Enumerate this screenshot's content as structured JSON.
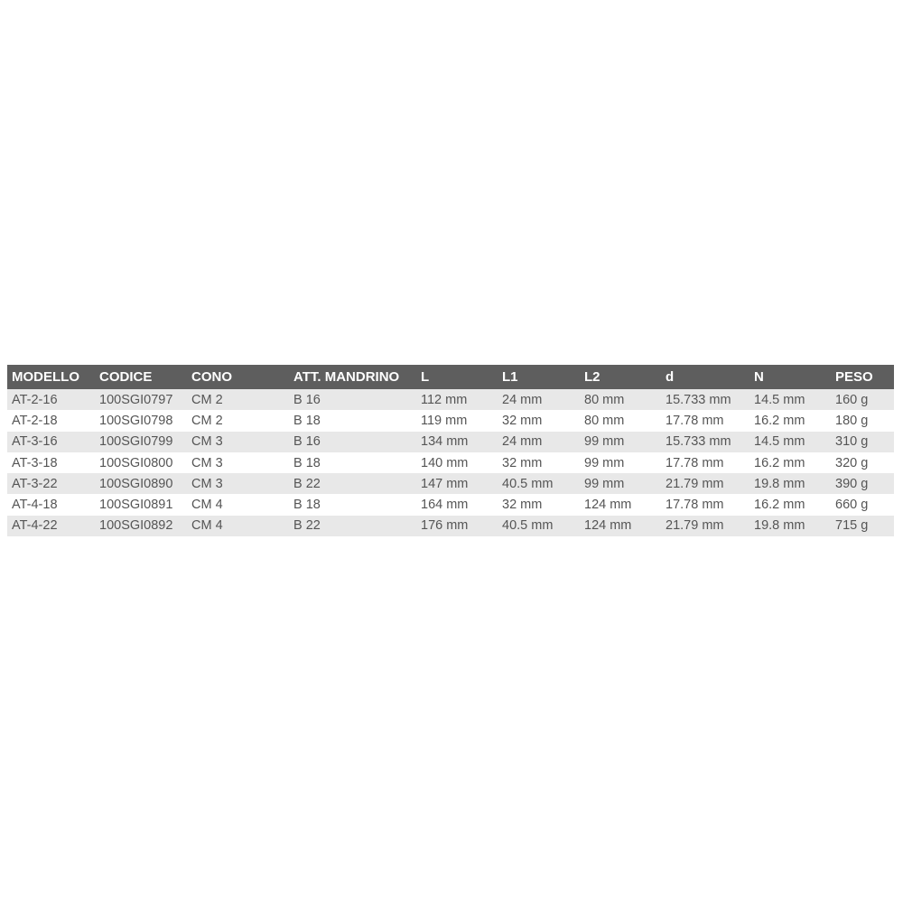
{
  "table": {
    "headers": [
      "MODELLO",
      "CODICE",
      "CONO",
      "ATT. MANDRINO",
      "L",
      "L1",
      "L2",
      "d",
      "N",
      "PESO"
    ],
    "rows": [
      [
        "AT-2-16",
        "100SGI0797",
        "CM 2",
        "B 16",
        "112 mm",
        "24 mm",
        "80 mm",
        "15.733 mm",
        "14.5 mm",
        "160 g"
      ],
      [
        "AT-2-18",
        "100SGI0798",
        "CM 2",
        "B 18",
        "119 mm",
        "32 mm",
        "80 mm",
        "17.78 mm",
        "16.2 mm",
        "180 g"
      ],
      [
        "AT-3-16",
        "100SGI0799",
        "CM 3",
        "B 16",
        "134 mm",
        "24 mm",
        "99 mm",
        "15.733 mm",
        "14.5 mm",
        "310 g"
      ],
      [
        "AT-3-18",
        "100SGI0800",
        "CM 3",
        "B 18",
        "140 mm",
        "32 mm",
        "99 mm",
        "17.78 mm",
        "16.2 mm",
        "320 g"
      ],
      [
        "AT-3-22",
        "100SGI0890",
        "CM 3",
        "B 22",
        "147 mm",
        "40.5 mm",
        "99 mm",
        "21.79 mm",
        "19.8 mm",
        "390 g"
      ],
      [
        "AT-4-18",
        "100SGI0891",
        "CM 4",
        "B 18",
        "164 mm",
        "32 mm",
        "124 mm",
        "17.78 mm",
        "16.2 mm",
        "660 g"
      ],
      [
        "AT-4-22",
        "100SGI0892",
        "CM 4",
        "B 22",
        "176 mm",
        "40.5 mm",
        "124 mm",
        "21.79 mm",
        "19.8 mm",
        "715 g"
      ]
    ]
  },
  "colors": {
    "header_bg": "#5e5e5e",
    "stripe": "#e8e8e8"
  }
}
